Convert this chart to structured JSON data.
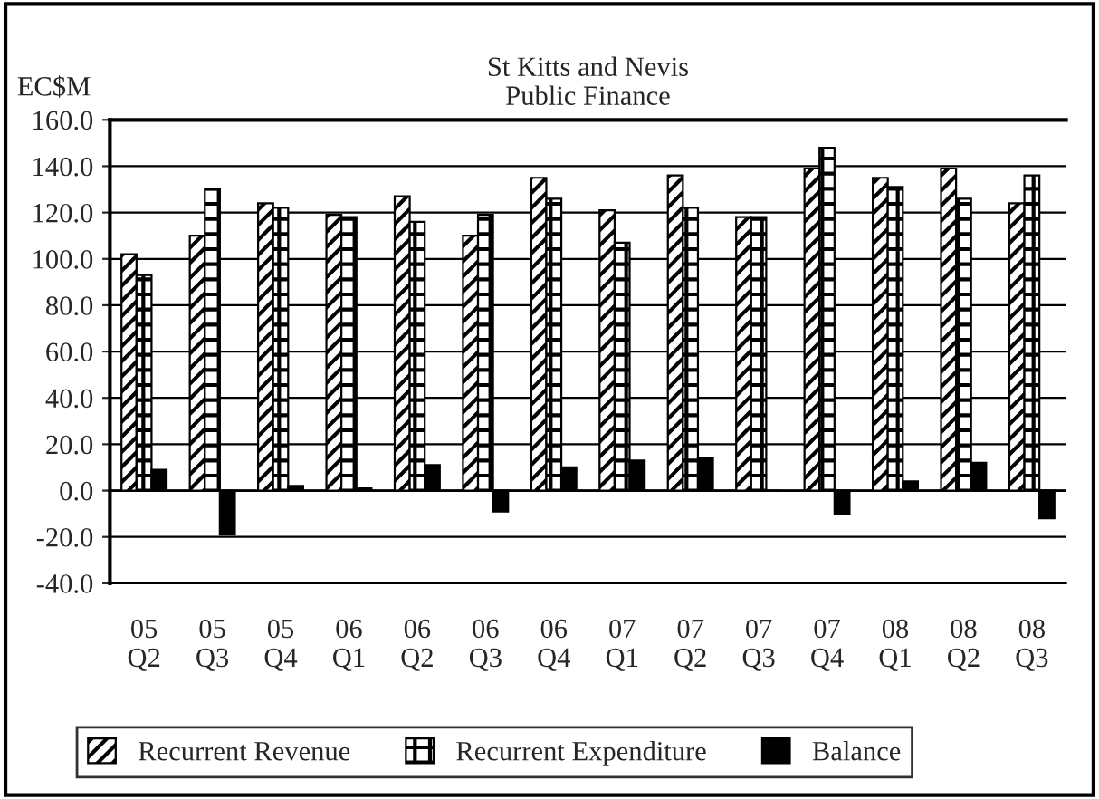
{
  "chart_data": {
    "type": "bar",
    "title": "St Kitts and Nevis\nPublic Finance",
    "ylabel": "EC$M",
    "categories": [
      "05\nQ2",
      "05\nQ3",
      "05\nQ4",
      "06\nQ1",
      "06\nQ2",
      "06\nQ3",
      "06\nQ4",
      "07\nQ1",
      "07\nQ2",
      "07\nQ3",
      "07\nQ4",
      "08\nQ1",
      "08\nQ2",
      "08\nQ3"
    ],
    "series": [
      {
        "name": "Recurrent Revenue",
        "color": "#000000",
        "values": [
          102,
          110,
          124,
          119,
          127,
          110,
          135,
          121,
          136,
          118,
          139,
          135,
          139,
          124
        ]
      },
      {
        "name": "Recurrent Expenditure",
        "color": "#000000",
        "values": [
          93,
          130,
          122,
          118,
          116,
          119,
          126,
          107,
          122,
          118,
          148,
          131,
          126,
          136
        ]
      },
      {
        "name": "Balance",
        "color": "#000000",
        "values": [
          9,
          -19,
          2,
          1,
          11,
          -9,
          10,
          13,
          14,
          0,
          -10,
          4,
          12,
          -12
        ]
      }
    ],
    "ylim": [
      -40,
      160
    ],
    "yticks": [
      {
        "value": -40,
        "label": "-40.0"
      },
      {
        "value": -20,
        "label": "-20.0"
      },
      {
        "value": 0,
        "label": "0.0"
      },
      {
        "value": 20,
        "label": "20.0"
      },
      {
        "value": 40,
        "label": "40.0"
      },
      {
        "value": 60,
        "label": "60.0"
      },
      {
        "value": 80,
        "label": "80.0"
      },
      {
        "value": 100,
        "label": "100.0"
      },
      {
        "value": 120,
        "label": "120.0"
      },
      {
        "value": 140,
        "label": "140.0"
      },
      {
        "value": 160,
        "label": "160.0"
      }
    ],
    "grid": "y",
    "legend": "bottom"
  }
}
